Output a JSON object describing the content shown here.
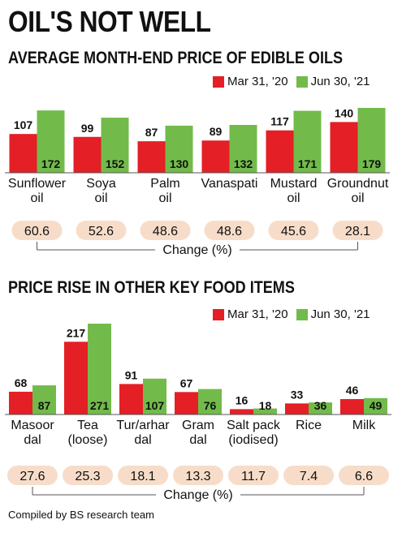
{
  "headline": "OIL'S NOT WELL",
  "footer": "Compiled by BS research team",
  "colors": {
    "mar": "#e41f26",
    "jun": "#72bb4b",
    "pill": "#f7ddc9"
  },
  "chart_data": [
    {
      "type": "bar",
      "title": "AVERAGE MONTH-END PRICE OF EDIBLE OILS",
      "series": [
        {
          "name": "Mar 31, '20",
          "values": [
            107,
            99,
            87,
            89,
            117,
            140
          ]
        },
        {
          "name": "Jun 30, '21",
          "values": [
            172,
            152,
            130,
            132,
            171,
            179
          ]
        }
      ],
      "categories": [
        [
          "Sunflower",
          "oil"
        ],
        [
          "Soya",
          "oil"
        ],
        [
          "Palm",
          "oil"
        ],
        [
          "Vanaspati"
        ],
        [
          "Mustard",
          "oil"
        ],
        [
          "Groundnut",
          "oil"
        ]
      ],
      "change": [
        "60.6",
        "52.6",
        "48.6",
        "48.6",
        "45.6",
        "28.1"
      ],
      "change_label": "Change (%)"
    },
    {
      "type": "bar",
      "title": "PRICE RISE IN OTHER KEY FOOD ITEMS",
      "series": [
        {
          "name": "Mar 31, '20",
          "values": [
            68,
            217,
            91,
            67,
            16,
            33,
            46
          ]
        },
        {
          "name": "Jun 30, '21",
          "values": [
            87,
            271,
            107,
            76,
            18,
            36,
            49
          ]
        }
      ],
      "categories": [
        [
          "Masoor",
          "dal"
        ],
        [
          "Tea",
          "(loose)"
        ],
        [
          "Tur/arhar",
          "dal"
        ],
        [
          "Gram",
          "dal"
        ],
        [
          "Salt pack",
          "(iodised)"
        ],
        [
          "Rice"
        ],
        [
          "Milk"
        ]
      ],
      "change": [
        "27.6",
        "25.3",
        "18.1",
        "13.3",
        "11.7",
        "7.4",
        "6.6"
      ],
      "change_label": "Change (%)"
    }
  ]
}
